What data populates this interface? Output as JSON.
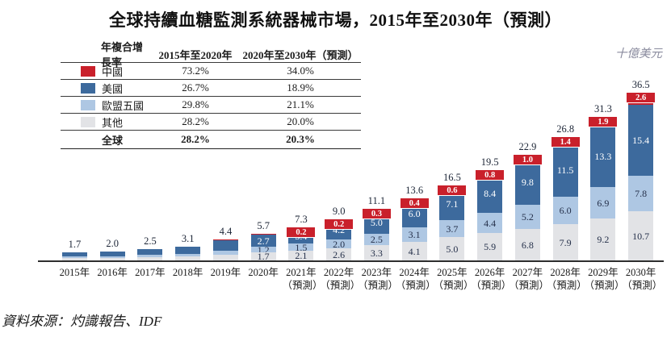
{
  "title": "全球持續血糖監測系統器械市場，2015年至2030年（預測）",
  "unit_label": "十億美元",
  "source": "資料來源：灼識報告、IDF",
  "colors": {
    "china": "#c9202b",
    "us": "#3d6a9d",
    "eu5": "#aec7e3",
    "other": "#e2e3e6"
  },
  "legend_table": {
    "headers": [
      "年複合增長率",
      "2015年至2020年",
      "2020年至2030年（預測）"
    ],
    "rows": [
      {
        "label": "中國",
        "series": "china",
        "c1": "73.2%",
        "c2": "34.0%",
        "bold": false
      },
      {
        "label": "美國",
        "series": "us",
        "c1": "26.7%",
        "c2": "18.9%",
        "bold": false
      },
      {
        "label": "歐盟五國",
        "series": "eu5",
        "c1": "29.8%",
        "c2": "21.1%",
        "bold": false
      },
      {
        "label": "其他",
        "series": "other",
        "c1": "28.2%",
        "c2": "20.0%",
        "bold": false
      },
      {
        "label": "全球",
        "series": null,
        "c1": "28.2%",
        "c2": "20.3%",
        "bold": true
      }
    ]
  },
  "chart_data": {
    "type": "bar",
    "stacked": true,
    "title": "全球持續血糖監測系統器械市場，2015年至2030年（預測）",
    "ylabel": "十億美元",
    "legend_position": "top-left-table",
    "grid": false,
    "series_names": {
      "china": "中國",
      "us": "美國",
      "eu5": "歐盟五國",
      "other": "其他"
    },
    "stack_order_top_to_bottom": [
      "china",
      "us",
      "eu5",
      "other"
    ],
    "note": "segment values for 2015-2019 and china 2015-2020 are unlabeled in the figure and estimated from bar proportions",
    "bars": [
      {
        "x": "2015年",
        "x2": "",
        "total": 1.7,
        "total_label": "1.7",
        "estimated_segments": true,
        "values": {
          "china": 0.03,
          "us": 0.88,
          "eu5": 0.32,
          "other": 0.47
        },
        "segment_labels": null
      },
      {
        "x": "2016年",
        "x2": "",
        "total": 2.0,
        "total_label": "2.0",
        "estimated_segments": true,
        "values": {
          "china": 0.04,
          "us": 1.03,
          "eu5": 0.38,
          "other": 0.55
        },
        "segment_labels": null
      },
      {
        "x": "2017年",
        "x2": "",
        "total": 2.5,
        "total_label": "2.5",
        "estimated_segments": true,
        "values": {
          "china": 0.05,
          "us": 1.29,
          "eu5": 0.47,
          "other": 0.69
        },
        "segment_labels": null
      },
      {
        "x": "2018年",
        "x2": "",
        "total": 3.1,
        "total_label": "3.1",
        "estimated_segments": true,
        "values": {
          "china": 0.06,
          "us": 1.6,
          "eu5": 0.59,
          "other": 0.85
        },
        "segment_labels": null
      },
      {
        "x": "2019年",
        "x2": "",
        "total": 4.4,
        "total_label": "4.4",
        "estimated_segments": true,
        "values": {
          "china": 0.08,
          "us": 2.27,
          "eu5": 0.85,
          "other": 1.2
        },
        "segment_labels": null
      },
      {
        "x": "2020年",
        "x2": "",
        "total": 5.7,
        "total_label": "5.7",
        "estimated_segments": false,
        "values": {
          "china": 0.1,
          "us": 2.7,
          "eu5": 1.2,
          "other": 1.7
        },
        "segment_labels": {
          "us": "2.7",
          "eu5": "1.2",
          "other": "1.7"
        }
      },
      {
        "x": "2021年",
        "x2": "（預測）",
        "total": 7.3,
        "total_label": "7.3",
        "estimated_segments": false,
        "values": {
          "china": 0.2,
          "us": 3.4,
          "eu5": 1.5,
          "other": 2.1
        },
        "segment_labels": {
          "china": "0.2",
          "us": "3.4",
          "eu5": "1.5",
          "other": "2.1"
        }
      },
      {
        "x": "2022年",
        "x2": "（預測）",
        "total": 9.0,
        "total_label": "9.0",
        "estimated_segments": false,
        "values": {
          "china": 0.2,
          "us": 4.2,
          "eu5": 2.0,
          "other": 2.6
        },
        "segment_labels": {
          "china": "0.2",
          "us": "4.2",
          "eu5": "2.0",
          "other": "2.6"
        }
      },
      {
        "x": "2023年",
        "x2": "（預測）",
        "total": 11.1,
        "total_label": "11.1",
        "estimated_segments": false,
        "values": {
          "china": 0.3,
          "us": 5.0,
          "eu5": 2.5,
          "other": 3.3
        },
        "segment_labels": {
          "china": "0.3",
          "us": "5.0",
          "eu5": "2.5",
          "other": "3.3"
        }
      },
      {
        "x": "2024年",
        "x2": "（預測）",
        "total": 13.6,
        "total_label": "13.6",
        "estimated_segments": false,
        "values": {
          "china": 0.4,
          "us": 6.0,
          "eu5": 3.1,
          "other": 4.1
        },
        "segment_labels": {
          "china": "0.4",
          "us": "6.0",
          "eu5": "3.1",
          "other": "4.1"
        }
      },
      {
        "x": "2025年",
        "x2": "（預測）",
        "total": 16.5,
        "total_label": "16.5",
        "estimated_segments": false,
        "values": {
          "china": 0.6,
          "us": 7.1,
          "eu5": 3.7,
          "other": 5.0
        },
        "segment_labels": {
          "china": "0.6",
          "us": "7.1",
          "eu5": "3.7",
          "other": "5.0"
        }
      },
      {
        "x": "2026年",
        "x2": "（預測）",
        "total": 19.5,
        "total_label": "19.5",
        "estimated_segments": false,
        "values": {
          "china": 0.8,
          "us": 8.4,
          "eu5": 4.4,
          "other": 5.9
        },
        "segment_labels": {
          "china": "0.8",
          "us": "8.4",
          "eu5": "4.4",
          "other": "5.9"
        }
      },
      {
        "x": "2027年",
        "x2": "（預測）",
        "total": 22.9,
        "total_label": "22.9",
        "estimated_segments": false,
        "values": {
          "china": 1.0,
          "us": 9.8,
          "eu5": 5.2,
          "other": 6.8
        },
        "segment_labels": {
          "china": "1.0",
          "us": "9.8",
          "eu5": "5.2",
          "other": "6.8"
        }
      },
      {
        "x": "2028年",
        "x2": "（預測）",
        "total": 26.8,
        "total_label": "26.8",
        "estimated_segments": false,
        "values": {
          "china": 1.4,
          "us": 11.5,
          "eu5": 6.0,
          "other": 7.9
        },
        "segment_labels": {
          "china": "1.4",
          "us": "11.5",
          "eu5": "6.0",
          "other": "7.9"
        }
      },
      {
        "x": "2029年",
        "x2": "（預測）",
        "total": 31.3,
        "total_label": "31.3",
        "estimated_segments": false,
        "values": {
          "china": 1.9,
          "us": 13.3,
          "eu5": 6.9,
          "other": 9.2
        },
        "segment_labels": {
          "china": "1.9",
          "us": "13.3",
          "eu5": "6.9",
          "other": "9.2"
        }
      },
      {
        "x": "2030年",
        "x2": "（預測）",
        "total": 36.5,
        "total_label": "36.5",
        "estimated_segments": false,
        "values": {
          "china": 2.6,
          "us": 15.4,
          "eu5": 7.8,
          "other": 10.7
        },
        "segment_labels": {
          "china": "2.6",
          "us": "15.4",
          "eu5": "7.8",
          "other": "10.7"
        }
      }
    ]
  }
}
